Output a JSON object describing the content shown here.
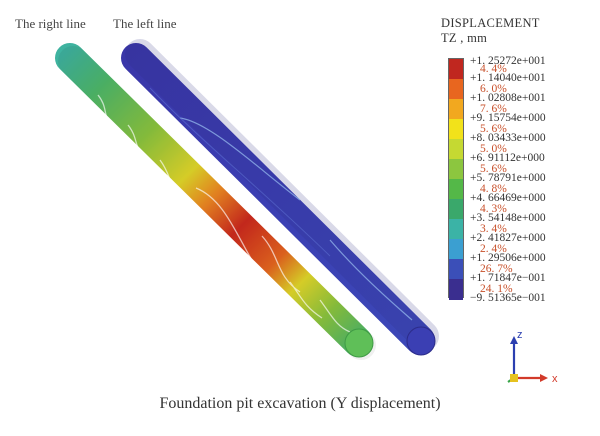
{
  "labels": {
    "right_line": "The right line",
    "left_line": "The left line"
  },
  "legend": {
    "title_line1": "DISPLACEMENT",
    "title_line2": "TZ , mm",
    "bounds": [
      "+1. 25272e+001",
      "+1. 14040e+001",
      "+1. 02808e+001",
      "+9. 15754e+000",
      "+8. 03433e+000",
      "+6. 91112e+000",
      "+5. 78791e+000",
      "+4. 66469e+000",
      "+3. 54148e+000",
      "+2. 41827e+000",
      "+1. 29506e+000",
      "+1. 71847e−001",
      "−9. 51365e−001"
    ],
    "percents": [
      "4. 4%",
      "6. 0%",
      "7. 6%",
      "5. 6%",
      "5. 0%",
      "5. 6%",
      "4. 8%",
      "4. 3%",
      "3. 4%",
      "2. 4%",
      "26. 7%",
      "24. 1%"
    ],
    "colors": [
      "#c0271f",
      "#e8661f",
      "#f2a81f",
      "#f2e21a",
      "#c5d932",
      "#8cc63f",
      "#54b848",
      "#3aa86b",
      "#3bb3a6",
      "#3b9fd1",
      "#3b4fb8",
      "#3a2e8f"
    ]
  },
  "pipe_colors": {
    "right_pipe_gradient": [
      "#3fb3a0",
      "#4fb96a",
      "#8cc63f",
      "#e3d92a",
      "#f08a22",
      "#cf2a1e",
      "#e8661f",
      "#e3d92a",
      "#8cc63f",
      "#4fb96a"
    ],
    "left_pipe": "#3b3fb0"
  },
  "axis": {
    "z": "z",
    "x": "x"
  },
  "caption": "Foundation pit excavation (Y displacement)"
}
